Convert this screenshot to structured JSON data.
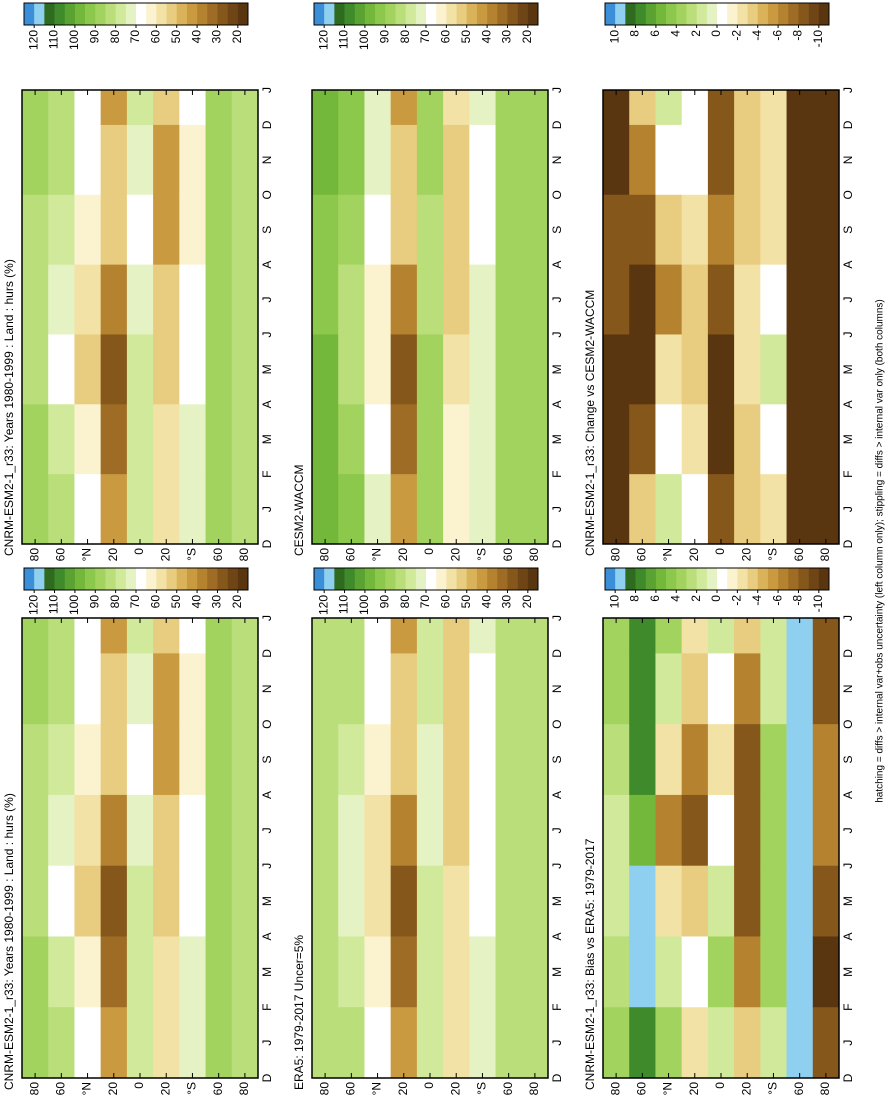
{
  "chart_data": [
    {
      "type": "heatmap",
      "title": "CNRM-ESM2-1_r33: Years 1980-1999 : Land : hurs (%)",
      "categories": [
        "D",
        "J",
        "F",
        "M",
        "A",
        "M",
        "J",
        "J",
        "A",
        "S",
        "O",
        "N",
        "D",
        "J"
      ],
      "xedges": [
        0,
        2,
        4,
        6,
        8,
        10,
        12,
        13
      ],
      "yedges": [
        90,
        70,
        50,
        30,
        10,
        -10,
        -30,
        -50,
        -70,
        -90
      ],
      "ylim": [
        -90,
        90
      ],
      "yticks": [
        80,
        60,
        {
          "value": 40,
          "label": "°N"
        },
        20,
        0,
        {
          "value": -20,
          "label": "20"
        },
        {
          "value": -40,
          "label": "°S"
        },
        {
          "value": -60,
          "label": "60"
        },
        {
          "value": -80,
          "label": "80"
        }
      ],
      "z": [
        [
          90,
          90,
          85,
          85,
          85,
          90,
          90
        ],
        [
          85,
          80,
          70,
          75,
          80,
          85,
          85
        ],
        [
          70,
          65,
          55,
          60,
          65,
          70,
          70
        ],
        [
          45,
          35,
          30,
          40,
          55,
          50,
          45
        ],
        [
          80,
          80,
          80,
          75,
          70,
          75,
          80
        ],
        [
          60,
          60,
          55,
          50,
          45,
          45,
          55
        ],
        [
          75,
          75,
          70,
          70,
          65,
          65,
          70
        ],
        [
          90,
          90,
          90,
          90,
          90,
          90,
          90
        ],
        [
          85,
          85,
          85,
          85,
          85,
          85,
          85
        ]
      ],
      "colorbar": {
        "clim": [
          125,
          15
        ],
        "ticks": [
          120,
          110,
          100,
          90,
          80,
          70,
          60,
          50,
          40,
          30,
          20
        ],
        "colors": [
          "#3a8fd8",
          "#8fcff0",
          "#2e6b1e",
          "#3f8a2a",
          "#5aa332",
          "#74b83b",
          "#8cc84b",
          "#a3d35f",
          "#bade7a",
          "#d0e99a",
          "#e5f2c4",
          "#ffffff",
          "#fbf3d0",
          "#f3e2a6",
          "#e8cc7f",
          "#dab25a",
          "#c99a40",
          "#b5832f",
          "#9e6c24",
          "#86571b",
          "#6f4515",
          "#5a3610"
        ]
      }
    },
    {
      "type": "heatmap",
      "title": "CNRM-ESM2-1_r33: Years 1980-1999 : Land : hurs (%)",
      "categories": [
        "D",
        "J",
        "F",
        "M",
        "A",
        "M",
        "J",
        "J",
        "A",
        "S",
        "O",
        "N",
        "D",
        "J"
      ],
      "xedges": [
        0,
        2,
        4,
        6,
        8,
        10,
        12,
        13
      ],
      "yedges": [
        90,
        70,
        50,
        30,
        10,
        -10,
        -30,
        -50,
        -70,
        -90
      ],
      "ylim": [
        -90,
        90
      ],
      "yticks": [
        80,
        60,
        {
          "value": 40,
          "label": "°N"
        },
        20,
        0,
        {
          "value": -20,
          "label": "20"
        },
        {
          "value": -40,
          "label": "°S"
        },
        {
          "value": -60,
          "label": "60"
        },
        {
          "value": -80,
          "label": "80"
        }
      ],
      "z": [
        [
          90,
          90,
          85,
          85,
          85,
          90,
          90
        ],
        [
          85,
          80,
          70,
          75,
          80,
          85,
          85
        ],
        [
          70,
          65,
          55,
          60,
          65,
          70,
          70
        ],
        [
          45,
          35,
          30,
          40,
          55,
          50,
          45
        ],
        [
          80,
          80,
          80,
          75,
          70,
          75,
          80
        ],
        [
          60,
          60,
          55,
          50,
          45,
          45,
          55
        ],
        [
          75,
          75,
          70,
          70,
          65,
          65,
          70
        ],
        [
          90,
          90,
          90,
          90,
          90,
          90,
          90
        ],
        [
          85,
          85,
          85,
          85,
          85,
          85,
          85
        ]
      ],
      "colorbar": {
        "clim": [
          125,
          15
        ],
        "ticks": [
          120,
          110,
          100,
          90,
          80,
          70,
          60,
          50,
          40,
          30,
          20
        ],
        "colors": [
          "#3a8fd8",
          "#8fcff0",
          "#2e6b1e",
          "#3f8a2a",
          "#5aa332",
          "#74b83b",
          "#8cc84b",
          "#a3d35f",
          "#bade7a",
          "#d0e99a",
          "#e5f2c4",
          "#ffffff",
          "#fbf3d0",
          "#f3e2a6",
          "#e8cc7f",
          "#dab25a",
          "#c99a40",
          "#b5832f",
          "#9e6c24",
          "#86571b",
          "#6f4515",
          "#5a3610"
        ]
      }
    },
    {
      "type": "heatmap",
      "title": "ERA5: 1979-2017 Uncer=5%",
      "categories": [
        "D",
        "J",
        "F",
        "M",
        "A",
        "M",
        "J",
        "J",
        "A",
        "S",
        "O",
        "N",
        "D",
        "J"
      ],
      "xedges": [
        0,
        2,
        4,
        6,
        8,
        10,
        12,
        13
      ],
      "yedges": [
        90,
        70,
        50,
        30,
        10,
        -10,
        -30,
        -50,
        -70,
        -90
      ],
      "ylim": [
        -90,
        90
      ],
      "yticks": [
        80,
        60,
        {
          "value": 40,
          "label": "°N"
        },
        20,
        0,
        {
          "value": -20,
          "label": "20"
        },
        {
          "value": -40,
          "label": "°S"
        },
        {
          "value": -60,
          "label": "60"
        },
        {
          "value": -80,
          "label": "80"
        }
      ],
      "z": [
        [
          85,
          85,
          85,
          85,
          85,
          85,
          85
        ],
        [
          85,
          80,
          75,
          75,
          80,
          85,
          85
        ],
        [
          70,
          65,
          60,
          60,
          65,
          70,
          70
        ],
        [
          45,
          35,
          30,
          40,
          55,
          50,
          45
        ],
        [
          80,
          80,
          80,
          75,
          75,
          80,
          80
        ],
        [
          60,
          60,
          60,
          55,
          50,
          50,
          55
        ],
        [
          75,
          75,
          70,
          70,
          70,
          70,
          75
        ],
        [
          85,
          85,
          85,
          85,
          85,
          85,
          85
        ],
        [
          85,
          85,
          85,
          85,
          85,
          85,
          85
        ]
      ],
      "colorbar": {
        "clim": [
          125,
          15
        ],
        "ticks": [
          120,
          110,
          100,
          90,
          80,
          70,
          60,
          50,
          40,
          30,
          20
        ],
        "colors": [
          "#3a8fd8",
          "#8fcff0",
          "#2e6b1e",
          "#3f8a2a",
          "#5aa332",
          "#74b83b",
          "#8cc84b",
          "#a3d35f",
          "#bade7a",
          "#d0e99a",
          "#e5f2c4",
          "#ffffff",
          "#fbf3d0",
          "#f3e2a6",
          "#e8cc7f",
          "#dab25a",
          "#c99a40",
          "#b5832f",
          "#9e6c24",
          "#86571b",
          "#6f4515",
          "#5a3610"
        ]
      }
    },
    {
      "type": "heatmap",
      "title": "CESM2-WACCM",
      "categories": [
        "D",
        "J",
        "F",
        "M",
        "A",
        "M",
        "J",
        "J",
        "A",
        "S",
        "O",
        "N",
        "D",
        "J"
      ],
      "xedges": [
        0,
        2,
        4,
        6,
        8,
        10,
        12,
        13
      ],
      "yedges": [
        90,
        70,
        50,
        30,
        10,
        -10,
        -30,
        -50,
        -70,
        -90
      ],
      "ylim": [
        -90,
        90
      ],
      "yticks": [
        80,
        60,
        {
          "value": 40,
          "label": "°N"
        },
        20,
        0,
        {
          "value": -20,
          "label": "20"
        },
        {
          "value": -40,
          "label": "°S"
        },
        {
          "value": -60,
          "label": "60"
        },
        {
          "value": -80,
          "label": "80"
        }
      ],
      "z": [
        [
          100,
          100,
          100,
          95,
          95,
          100,
          100
        ],
        [
          95,
          90,
          85,
          85,
          90,
          95,
          95
        ],
        [
          75,
          70,
          65,
          65,
          70,
          75,
          75
        ],
        [
          45,
          35,
          30,
          40,
          55,
          50,
          45
        ],
        [
          90,
          90,
          90,
          85,
          85,
          90,
          90
        ],
        [
          65,
          65,
          60,
          55,
          55,
          55,
          60
        ],
        [
          75,
          75,
          75,
          75,
          70,
          70,
          75
        ],
        [
          90,
          90,
          90,
          90,
          90,
          90,
          90
        ],
        [
          90,
          90,
          90,
          90,
          90,
          90,
          90
        ]
      ],
      "colorbar": {
        "clim": [
          125,
          15
        ],
        "ticks": [
          120,
          110,
          100,
          90,
          80,
          70,
          60,
          50,
          40,
          30,
          20
        ],
        "colors": [
          "#3a8fd8",
          "#8fcff0",
          "#2e6b1e",
          "#3f8a2a",
          "#5aa332",
          "#74b83b",
          "#8cc84b",
          "#a3d35f",
          "#bade7a",
          "#d0e99a",
          "#e5f2c4",
          "#ffffff",
          "#fbf3d0",
          "#f3e2a6",
          "#e8cc7f",
          "#dab25a",
          "#c99a40",
          "#b5832f",
          "#9e6c24",
          "#86571b",
          "#6f4515",
          "#5a3610"
        ]
      }
    },
    {
      "type": "heatmap",
      "title": "CNRM-ESM2-1_r33: Bias vs ERA5: 1979-2017",
      "categories": [
        "D",
        "J",
        "F",
        "M",
        "A",
        "M",
        "J",
        "J",
        "A",
        "S",
        "O",
        "N",
        "D",
        "J"
      ],
      "xedges": [
        0,
        2,
        4,
        6,
        8,
        10,
        12,
        13
      ],
      "yedges": [
        90,
        70,
        50,
        30,
        10,
        -10,
        -30,
        -50,
        -70,
        -90
      ],
      "ylim": [
        -90,
        90
      ],
      "yticks": [
        80,
        60,
        {
          "value": 40,
          "label": "°N"
        },
        20,
        0,
        {
          "value": -20,
          "label": "20"
        },
        {
          "value": -40,
          "label": "°S"
        },
        {
          "value": -60,
          "label": "60"
        },
        {
          "value": -80,
          "label": "80"
        }
      ],
      "z": [
        [
          4,
          3,
          2,
          2,
          3,
          4,
          4
        ],
        [
          8,
          10,
          10,
          6,
          8,
          8,
          8
        ],
        [
          4,
          2,
          -2,
          -6,
          -2,
          2,
          4
        ],
        [
          -2,
          0,
          -4,
          -8,
          -6,
          -4,
          -2
        ],
        [
          2,
          4,
          2,
          0,
          -2,
          0,
          2
        ],
        [
          -4,
          -6,
          -8,
          -8,
          -8,
          -6,
          -4
        ],
        [
          2,
          4,
          4,
          4,
          4,
          2,
          2
        ],
        [
          10,
          10,
          10,
          10,
          10,
          10,
          10
        ],
        [
          -8,
          -10,
          -8,
          -6,
          -6,
          -8,
          -8
        ]
      ],
      "colorbar": {
        "clim": [
          11,
          -11
        ],
        "ticks": [
          10,
          8,
          6,
          4,
          2,
          0,
          -2,
          -4,
          -6,
          -8,
          -10
        ],
        "colors": [
          "#3a8fd8",
          "#8fcff0",
          "#2e6b1e",
          "#3f8a2a",
          "#5aa332",
          "#74b83b",
          "#8cc84b",
          "#a3d35f",
          "#bade7a",
          "#d0e99a",
          "#e5f2c4",
          "#ffffff",
          "#fbf3d0",
          "#f3e2a6",
          "#e8cc7f",
          "#dab25a",
          "#c99a40",
          "#b5832f",
          "#9e6c24",
          "#86571b",
          "#6f4515",
          "#5a3610"
        ]
      }
    },
    {
      "type": "heatmap",
      "title": "CNRM-ESM2-1_r33: Change vs CESM2-WACCM",
      "categories": [
        "D",
        "J",
        "F",
        "M",
        "A",
        "M",
        "J",
        "J",
        "A",
        "S",
        "O",
        "N",
        "D",
        "J"
      ],
      "xedges": [
        0,
        2,
        4,
        6,
        8,
        10,
        12,
        13
      ],
      "yedges": [
        90,
        70,
        50,
        30,
        10,
        -10,
        -30,
        -50,
        -70,
        -90
      ],
      "ylim": [
        -90,
        90
      ],
      "yticks": [
        80,
        60,
        {
          "value": 40,
          "label": "°N"
        },
        20,
        0,
        {
          "value": -20,
          "label": "20"
        },
        {
          "value": -40,
          "label": "°S"
        },
        {
          "value": -60,
          "label": "60"
        },
        {
          "value": -80,
          "label": "80"
        }
      ],
      "z": [
        [
          -10,
          -10,
          -10,
          -8,
          -8,
          -10,
          -10
        ],
        [
          -4,
          -8,
          -10,
          -10,
          -8,
          -6,
          -4
        ],
        [
          2,
          0,
          -2,
          -6,
          -4,
          0,
          2
        ],
        [
          0,
          -2,
          -4,
          -4,
          -2,
          0,
          0
        ],
        [
          -8,
          -10,
          -10,
          -8,
          -6,
          -8,
          -8
        ],
        [
          -4,
          -4,
          -2,
          -2,
          -4,
          -4,
          -4
        ],
        [
          -2,
          0,
          2,
          0,
          -2,
          -2,
          -2
        ],
        [
          -10,
          -10,
          -10,
          -10,
          -10,
          -10,
          -10
        ],
        [
          -10,
          -10,
          -10,
          -10,
          -10,
          -10,
          -10
        ]
      ],
      "colorbar": {
        "clim": [
          11,
          -11
        ],
        "ticks": [
          10,
          8,
          6,
          4,
          2,
          0,
          -2,
          -4,
          -6,
          -8,
          -10
        ],
        "colors": [
          "#3a8fd8",
          "#8fcff0",
          "#2e6b1e",
          "#3f8a2a",
          "#5aa332",
          "#74b83b",
          "#8cc84b",
          "#a3d35f",
          "#bade7a",
          "#d0e99a",
          "#e5f2c4",
          "#ffffff",
          "#fbf3d0",
          "#f3e2a6",
          "#e8cc7f",
          "#dab25a",
          "#c99a40",
          "#b5832f",
          "#9e6c24",
          "#86571b",
          "#6f4515",
          "#5a3610"
        ]
      }
    }
  ],
  "footnote": "hatching = diffs > internal var+obs uncertainty (left column only); stippling = diffs > internal var only (both columns)"
}
